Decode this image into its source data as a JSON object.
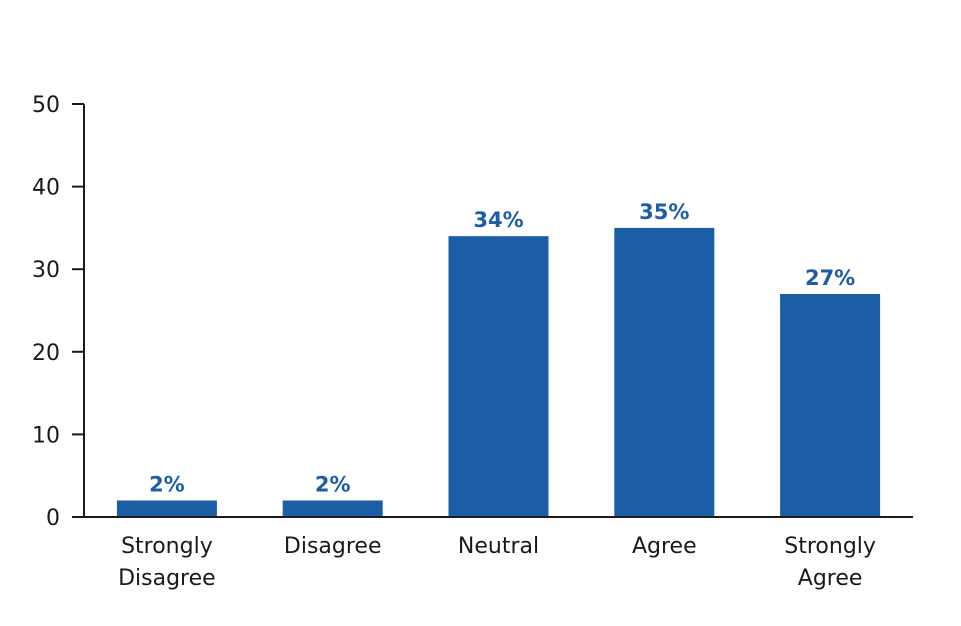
{
  "chart_data": {
    "type": "bar",
    "categories": [
      "Strongly Disagree",
      "Disagree",
      "Neutral",
      "Agree",
      "Strongly Agree"
    ],
    "category_lines": [
      [
        "Strongly",
        "Disagree"
      ],
      [
        "Disagree"
      ],
      [
        "Neutral"
      ],
      [
        "Agree"
      ],
      [
        "Strongly",
        "Agree"
      ]
    ],
    "values": [
      2,
      2,
      34,
      35,
      27
    ],
    "data_labels": [
      "2%",
      "2%",
      "34%",
      "35%",
      "27%"
    ],
    "y_ticks": [
      "0",
      "10",
      "20",
      "30",
      "40",
      "50"
    ],
    "ylim": [
      0,
      50
    ],
    "grid": false,
    "bar_color": "#1b5ea5",
    "label_color": "#1b5ea5",
    "axis_color": "#1a1a1a"
  }
}
